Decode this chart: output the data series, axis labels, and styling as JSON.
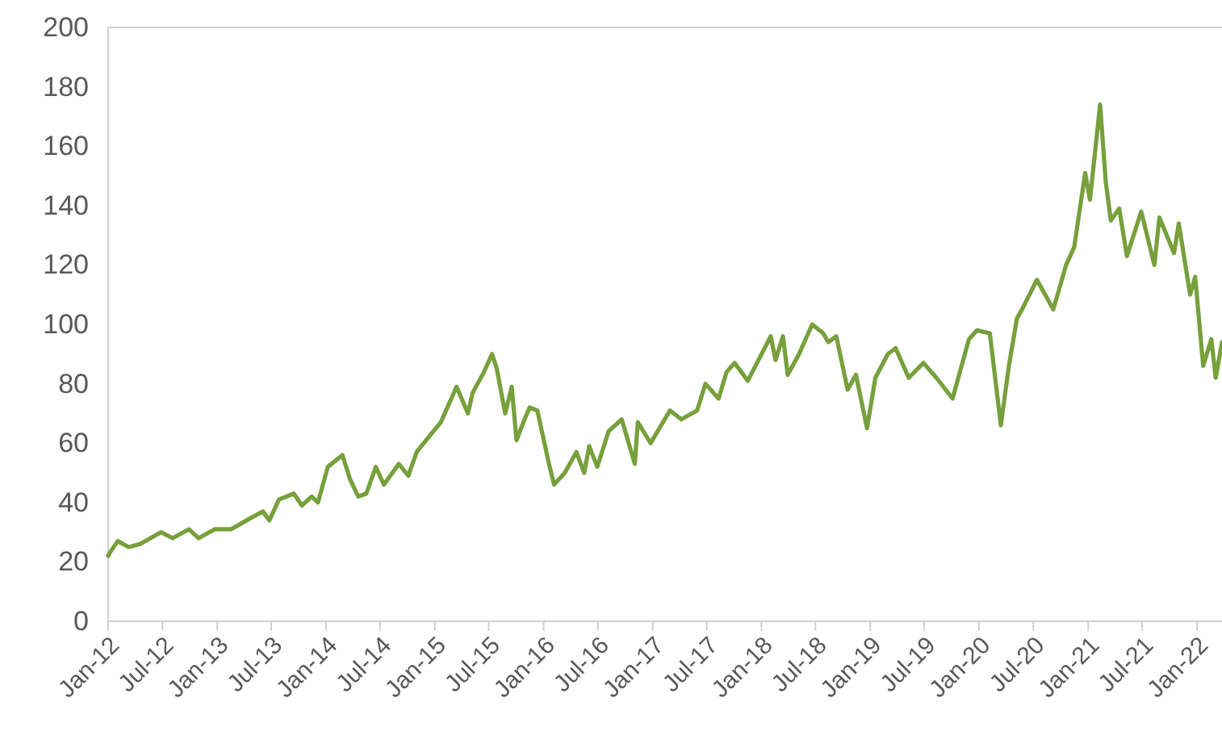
{
  "chart_data": {
    "type": "line",
    "xlim": [
      "2012-01-01",
      "2022-03-26"
    ],
    "ylim": [
      0,
      200
    ],
    "yticks": [
      0,
      20,
      40,
      60,
      80,
      100,
      120,
      140,
      160,
      180,
      200
    ],
    "xticks": [
      {
        "value": "2012-01",
        "label": "Jan-12"
      },
      {
        "value": "2012-07",
        "label": "Jul-12"
      },
      {
        "value": "2013-01",
        "label": "Jan-13"
      },
      {
        "value": "2013-07",
        "label": "Jul-13"
      },
      {
        "value": "2014-01",
        "label": "Jan-14"
      },
      {
        "value": "2014-07",
        "label": "Jul-14"
      },
      {
        "value": "2015-01",
        "label": "Jan-15"
      },
      {
        "value": "2015-07",
        "label": "Jul-15"
      },
      {
        "value": "2016-01",
        "label": "Jan-16"
      },
      {
        "value": "2016-07",
        "label": "Jul-16"
      },
      {
        "value": "2017-01",
        "label": "Jan-17"
      },
      {
        "value": "2017-07",
        "label": "Jul-17"
      },
      {
        "value": "2018-01",
        "label": "Jan-18"
      },
      {
        "value": "2018-07",
        "label": "Jul-18"
      },
      {
        "value": "2019-01",
        "label": "Jan-19"
      },
      {
        "value": "2019-07",
        "label": "Jul-19"
      },
      {
        "value": "2020-01",
        "label": "Jan-20"
      },
      {
        "value": "2020-07",
        "label": "Jul-20"
      },
      {
        "value": "2021-01",
        "label": "Jan-21"
      },
      {
        "value": "2021-07",
        "label": "Jul-21"
      },
      {
        "value": "2022-01",
        "label": "Jan-22"
      }
    ],
    "grid": false,
    "marker": "none",
    "line_style": "solid",
    "x": [
      "2012-01-01",
      "2012-01-06",
      "2012-02-02",
      "2012-03-10",
      "2012-04-17",
      "2012-06-27",
      "2012-08-04",
      "2012-09-28",
      "2012-10-30",
      "2012-12-24",
      "2013-02-16",
      "2013-04-10",
      "2013-06-03",
      "2013-06-25",
      "2013-07-27",
      "2013-09-15",
      "2013-10-12",
      "2013-11-14",
      "2013-12-05",
      "2014-01-07",
      "2014-02-25",
      "2014-03-22",
      "2014-04-19",
      "2014-05-16",
      "2014-06-17",
      "2014-07-14",
      "2014-09-02",
      "2014-10-04",
      "2014-11-01",
      "2014-12-19",
      "2015-01-21",
      "2015-03-15",
      "2015-04-22",
      "2015-05-08",
      "2015-06-15",
      "2015-07-12",
      "2015-07-28",
      "2015-08-25",
      "2015-09-16",
      "2015-10-02",
      "2015-10-29",
      "2015-11-15",
      "2015-12-11",
      "2016-01-19",
      "2016-02-05",
      "2016-03-12",
      "2016-04-20",
      "2016-05-16",
      "2016-06-02",
      "2016-06-29",
      "2016-08-06",
      "2016-09-19",
      "2016-11-02",
      "2016-11-12",
      "2016-12-25",
      "2017-02-28",
      "2017-04-07",
      "2017-05-30",
      "2017-06-27",
      "2017-08-10",
      "2017-09-06",
      "2017-10-03",
      "2017-11-16",
      "2018-02-01",
      "2018-02-17",
      "2018-03-14",
      "2018-03-30",
      "2018-05-07",
      "2018-06-20",
      "2018-07-27",
      "2018-08-13",
      "2018-09-09",
      "2018-10-17",
      "2018-11-14",
      "2018-12-21",
      "2019-01-18",
      "2019-03-01",
      "2019-03-27",
      "2019-05-10",
      "2019-06-28",
      "2019-08-11",
      "2019-10-04",
      "2019-11-28",
      "2019-12-25",
      "2020-02-06",
      "2020-03-14",
      "2020-04-10",
      "2020-05-07",
      "2020-05-24",
      "2020-07-13",
      "2020-09-06",
      "2020-10-19",
      "2020-11-15",
      "2020-12-22",
      "2021-01-07",
      "2021-02-10",
      "2021-03-01",
      "2021-03-18",
      "2021-04-15",
      "2021-05-11",
      "2021-06-28",
      "2021-08-11",
      "2021-08-28",
      "2021-10-16",
      "2021-11-01",
      "2021-12-09",
      "2021-12-26",
      "2022-01-22",
      "2022-02-18",
      "2022-03-05",
      "2022-03-26"
    ],
    "series": [
      {
        "color": "#77a03c",
        "values": [
          22,
          23,
          27,
          25,
          26,
          30,
          28,
          31,
          28,
          31,
          31,
          34,
          37,
          34,
          41,
          43,
          39,
          42,
          40,
          52,
          56,
          48,
          42,
          43,
          52,
          46,
          53,
          49,
          57,
          63,
          67,
          79,
          70,
          77,
          84,
          90,
          85,
          70,
          79,
          61,
          68,
          72,
          71,
          53,
          46,
          50,
          57,
          50,
          59,
          52,
          64,
          68,
          53,
          67,
          60,
          71,
          68,
          71,
          80,
          75,
          84,
          87,
          81,
          96,
          88,
          96,
          83,
          90,
          100,
          97,
          94,
          96,
          78,
          83,
          65,
          82,
          90,
          92,
          82,
          87,
          82,
          75,
          95,
          98,
          97,
          66,
          86,
          102,
          105,
          115,
          105,
          120,
          126,
          151,
          142,
          174,
          148,
          135,
          139,
          123,
          138,
          120,
          136,
          124,
          134,
          110,
          116,
          86,
          95,
          82,
          94
        ]
      }
    ]
  }
}
